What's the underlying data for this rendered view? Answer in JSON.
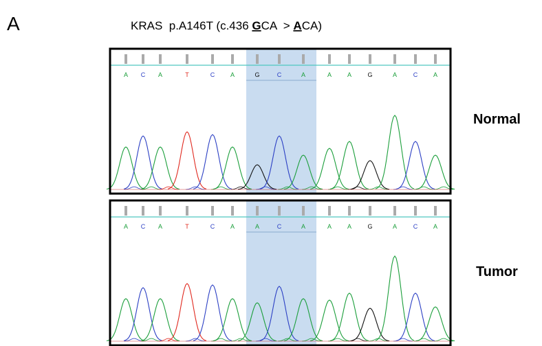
{
  "figure": {
    "panel_label": "A",
    "title": {
      "prefix": "KRAS  p.A146T (c.436 ",
      "ref_base": "G",
      "ref_rest": "CA  > ",
      "alt_base": "A",
      "alt_rest": "CA)"
    },
    "panels": [
      {
        "label": "Normal",
        "bases": [
          "A",
          "C",
          "A",
          "T",
          "C",
          "A",
          "G",
          "C",
          "A",
          "A",
          "A",
          "G",
          "A",
          "C",
          "A"
        ]
      },
      {
        "label": "Tumor",
        "bases": [
          "A",
          "C",
          "A",
          "T",
          "C",
          "A",
          "A",
          "C",
          "A",
          "A",
          "A",
          "G",
          "A",
          "C",
          "A"
        ]
      }
    ]
  }
}
